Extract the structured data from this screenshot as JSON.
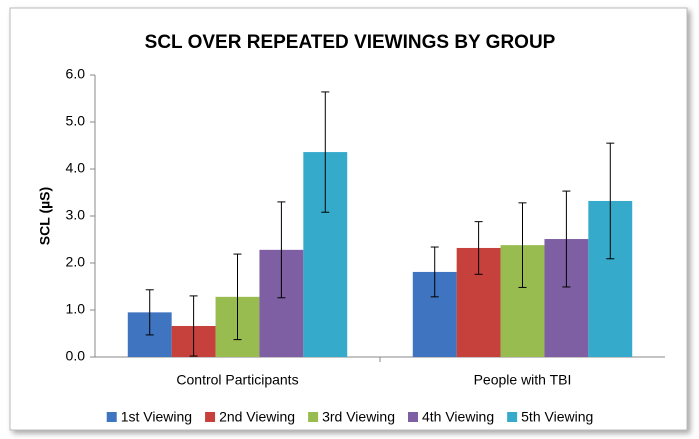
{
  "chart_data": {
    "type": "bar",
    "title": "SCL OVER REPEATED VIEWINGS BY GROUP",
    "ylabel": "SCL (µS)",
    "categories": [
      "Control Participants",
      "People with TBI"
    ],
    "series": [
      {
        "name": "1st Viewing",
        "color": "#3f74c0",
        "values": [
          0.95,
          1.81
        ],
        "errors": [
          0.48,
          0.53
        ]
      },
      {
        "name": "2nd Viewing",
        "color": "#c6403c",
        "values": [
          0.66,
          2.32
        ],
        "errors": [
          0.64,
          0.56
        ]
      },
      {
        "name": "3rd Viewing",
        "color": "#98bc4f",
        "values": [
          1.28,
          2.38
        ],
        "errors": [
          0.91,
          0.9
        ]
      },
      {
        "name": "4th Viewing",
        "color": "#7e5fa3",
        "values": [
          2.28,
          2.51
        ],
        "errors": [
          1.02,
          1.02
        ]
      },
      {
        "name": "5th Viewing",
        "color": "#35aacb",
        "values": [
          4.36,
          3.32
        ],
        "errors": [
          1.28,
          1.23
        ]
      }
    ],
    "ylim": [
      0,
      6
    ],
    "yticks": [
      {
        "value": 0,
        "label": "0.0"
      },
      {
        "value": 1,
        "label": "1.0"
      },
      {
        "value": 2,
        "label": "2.0"
      },
      {
        "value": 3,
        "label": "3.0"
      },
      {
        "value": 4,
        "label": "4.0"
      },
      {
        "value": 5,
        "label": "5.0"
      },
      {
        "value": 6,
        "label": "6.0"
      }
    ],
    "grid": false,
    "legend": "bottom"
  }
}
